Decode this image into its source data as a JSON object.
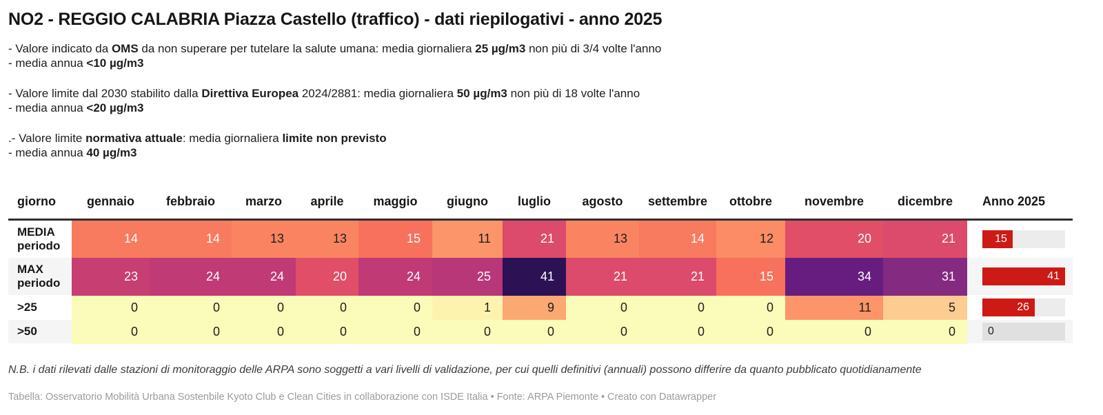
{
  "colors": {
    "bar_red": "#cd1a15",
    "bar_track": "#ececec",
    "bar_track_zero": "#e0e0e0",
    "row_stripe": "#f5f5f5",
    "header_rule": "#2e2e2e",
    "heat_low": "#fbfcba",
    "heat_high": "#2c1155"
  },
  "notes": [
    {
      "line1": [
        {
          "t": "- Valore indicato da "
        },
        {
          "t": "OMS",
          "b": true
        },
        {
          "t": " da non superare per tutelare la salute umana: media giornaliera "
        },
        {
          "t": "25 µg/m3",
          "b": true
        },
        {
          "t": " non più di 3/4 volte l'anno"
        }
      ],
      "line2": [
        {
          "t": "- media annua "
        },
        {
          "t": "<10 µg/m3",
          "b": true
        }
      ]
    },
    {
      "line1": [
        {
          "t": "- Valore limite dal 2030 stabilito dalla "
        },
        {
          "t": "Direttiva Europea",
          "b": true
        },
        {
          "t": " 2024/2881: media giornaliera "
        },
        {
          "t": "50 µg/m3",
          "b": true
        },
        {
          "t": " non più di 18 volte l'anno"
        }
      ],
      "line2": [
        {
          "t": "- media annua "
        },
        {
          "t": "<20 µg/m3",
          "b": true
        }
      ]
    },
    {
      "line1": [
        {
          "t": ".- Valore limite "
        },
        {
          "t": "normativa attuale",
          "b": true
        },
        {
          "t": ": media giornaliera "
        },
        {
          "t": "limite non previsto",
          "b": true
        }
      ],
      "line2": [
        {
          "t": "- media annua "
        },
        {
          "t": "40 µg/m3",
          "b": true
        }
      ]
    }
  ],
  "chart_data": {
    "type": "table",
    "title": "NO2 - REGGIO CALABRIA Piazza Castello (traffico) - dati riepilogativi - anno 2025",
    "columns": [
      "giorno",
      "gennaio",
      "febbraio",
      "marzo",
      "aprile",
      "maggio",
      "giugno",
      "luglio",
      "agosto",
      "settembre",
      "ottobre",
      "novembre",
      "dicembre",
      "Anno 2025"
    ],
    "rows": [
      {
        "label": "MEDIA periodo",
        "cells": [
          {
            "v": "14",
            "bg": "#f87a5f",
            "fg": "#ffffff"
          },
          {
            "v": "14",
            "bg": "#f87a5f",
            "fg": "#ffffff"
          },
          {
            "v": "13",
            "bg": "#fa8462",
            "fg": "#1d1d1d"
          },
          {
            "v": "13",
            "bg": "#fa8462",
            "fg": "#1d1d1d"
          },
          {
            "v": "15",
            "bg": "#f7715c",
            "fg": "#ffffff"
          },
          {
            "v": "11",
            "bg": "#fc9569",
            "fg": "#1d1d1d"
          },
          {
            "v": "21",
            "bg": "#dc4b6b",
            "fg": "#ffffff"
          },
          {
            "v": "13",
            "bg": "#fa8462",
            "fg": "#1d1d1d"
          },
          {
            "v": "14",
            "bg": "#f87a5f",
            "fg": "#ffffff"
          },
          {
            "v": "12",
            "bg": "#fb8c65",
            "fg": "#1d1d1d"
          },
          {
            "v": "20",
            "bg": "#e04e68",
            "fg": "#ffffff"
          },
          {
            "v": "21",
            "bg": "#dc4b6b",
            "fg": "#ffffff"
          }
        ],
        "anno": {
          "value": "15",
          "width": "36.6%"
        }
      },
      {
        "label": "MAX periodo",
        "cells": [
          {
            "v": "23",
            "bg": "#c63e72",
            "fg": "#ffffff"
          },
          {
            "v": "24",
            "bg": "#c03a76",
            "fg": "#ffffff"
          },
          {
            "v": "24",
            "bg": "#c03a76",
            "fg": "#ffffff"
          },
          {
            "v": "20",
            "bg": "#e04e68",
            "fg": "#ffffff"
          },
          {
            "v": "24",
            "bg": "#c03a76",
            "fg": "#ffffff"
          },
          {
            "v": "25",
            "bg": "#b73779",
            "fg": "#ffffff"
          },
          {
            "v": "41",
            "bg": "#2c1155",
            "fg": "#ffffff"
          },
          {
            "v": "21",
            "bg": "#dc4b6b",
            "fg": "#ffffff"
          },
          {
            "v": "21",
            "bg": "#dc4b6b",
            "fg": "#ffffff"
          },
          {
            "v": "15",
            "bg": "#f7715c",
            "fg": "#ffffff"
          },
          {
            "v": "34",
            "bg": "#671d80",
            "fg": "#ffffff"
          },
          {
            "v": "31",
            "bg": "#852a81",
            "fg": "#ffffff"
          }
        ],
        "anno": {
          "value": "41",
          "width": "100%"
        }
      },
      {
        "label": ">25",
        "cells": [
          {
            "v": "0",
            "bg": "#fbfcba",
            "fg": "#1d1d1d"
          },
          {
            "v": "0",
            "bg": "#fbfcba",
            "fg": "#1d1d1d"
          },
          {
            "v": "0",
            "bg": "#fbfcba",
            "fg": "#1d1d1d"
          },
          {
            "v": "0",
            "bg": "#fbfcba",
            "fg": "#1d1d1d"
          },
          {
            "v": "0",
            "bg": "#fbfcba",
            "fg": "#1d1d1d"
          },
          {
            "v": "1",
            "bg": "#fdf3af",
            "fg": "#1d1d1d"
          },
          {
            "v": "9",
            "bg": "#fca873",
            "fg": "#1d1d1d"
          },
          {
            "v": "0",
            "bg": "#fbfcba",
            "fg": "#1d1d1d"
          },
          {
            "v": "0",
            "bg": "#fbfcba",
            "fg": "#1d1d1d"
          },
          {
            "v": "0",
            "bg": "#fbfcba",
            "fg": "#1d1d1d"
          },
          {
            "v": "11",
            "bg": "#fc9569",
            "fg": "#1d1d1d"
          },
          {
            "v": "5",
            "bg": "#fdcc90",
            "fg": "#1d1d1d"
          }
        ],
        "anno": {
          "value": "26",
          "width": "63.4%"
        }
      },
      {
        "label": ">50",
        "cells": [
          {
            "v": "0",
            "bg": "#fbfcba",
            "fg": "#1d1d1d"
          },
          {
            "v": "0",
            "bg": "#fbfcba",
            "fg": "#1d1d1d"
          },
          {
            "v": "0",
            "bg": "#fbfcba",
            "fg": "#1d1d1d"
          },
          {
            "v": "0",
            "bg": "#fbfcba",
            "fg": "#1d1d1d"
          },
          {
            "v": "0",
            "bg": "#fbfcba",
            "fg": "#1d1d1d"
          },
          {
            "v": "0",
            "bg": "#fbfcba",
            "fg": "#1d1d1d"
          },
          {
            "v": "0",
            "bg": "#fbfcba",
            "fg": "#1d1d1d"
          },
          {
            "v": "0",
            "bg": "#fbfcba",
            "fg": "#1d1d1d"
          },
          {
            "v": "0",
            "bg": "#fbfcba",
            "fg": "#1d1d1d"
          },
          {
            "v": "0",
            "bg": "#fbfcba",
            "fg": "#1d1d1d"
          },
          {
            "v": "0",
            "bg": "#fbfcba",
            "fg": "#1d1d1d"
          },
          {
            "v": "0",
            "bg": "#fbfcba",
            "fg": "#1d1d1d"
          }
        ],
        "anno": {
          "value": "0",
          "width": "0%"
        }
      }
    ]
  },
  "footnote": "N.B. i dati rilevati dalle stazioni di monitoraggio delle ARPA sono soggetti a vari livelli di validazione, per cui quelli definitivi (annuali) possono differire da quanto pubblicato quotidianamente",
  "attribution": "Tabella: Osservatorio Mobilità Urbana Sostenbile Kyoto Club e Clean Cities in collaborazione con ISDE Italia • Fonte: ARPA Piemonte • Creato con Datawrapper"
}
